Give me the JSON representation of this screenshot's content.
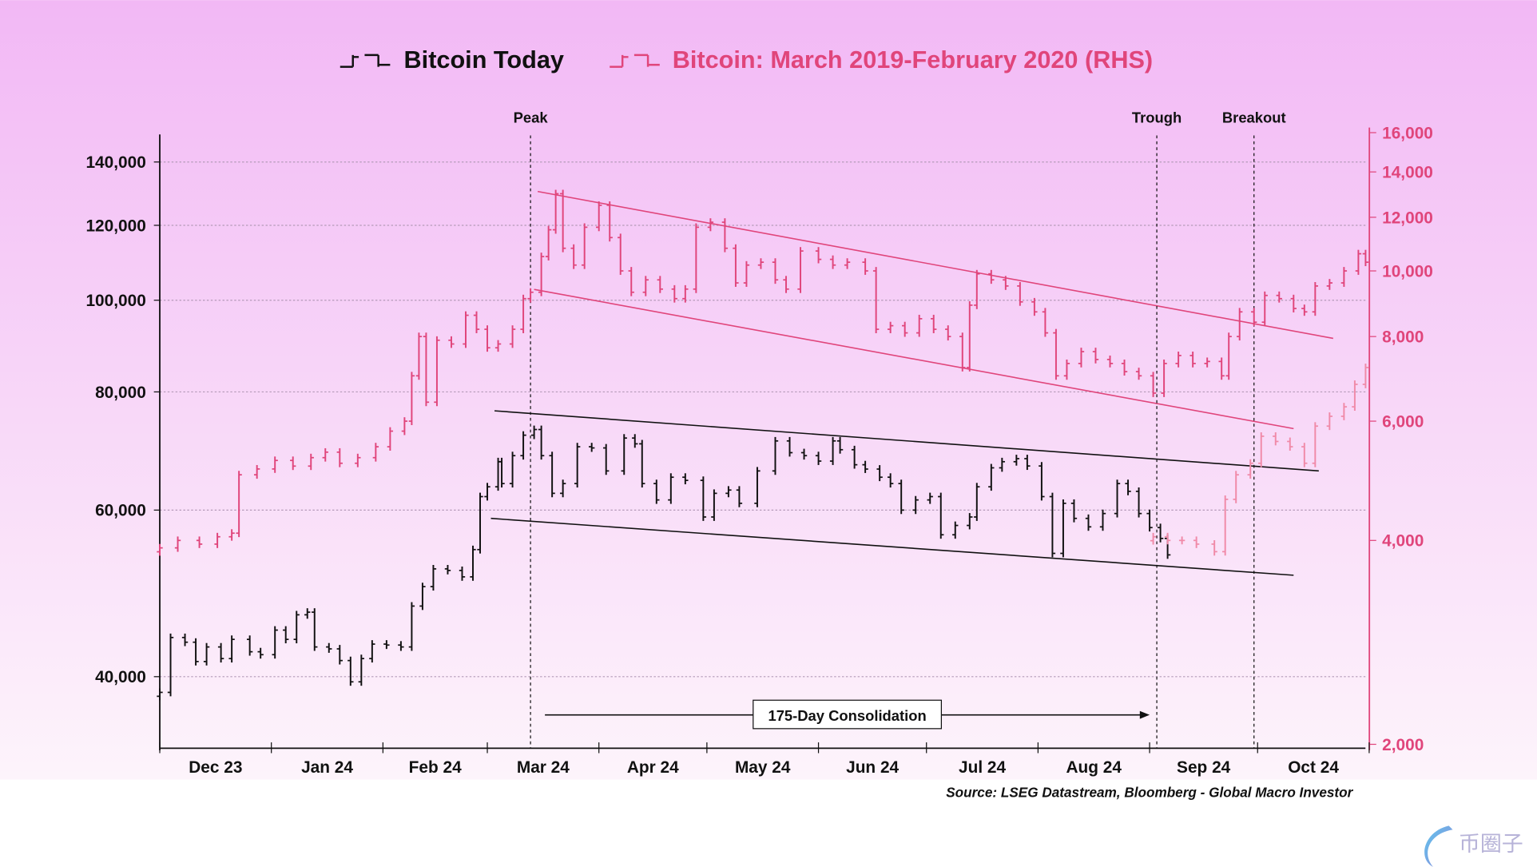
{
  "chart_data": {
    "type": "line",
    "title": "",
    "colors": {
      "today": "#111111",
      "rhs": "#e0457b",
      "rhs_light": "#f08aa8",
      "bg_top": "#f2b8f5",
      "bg_bottom": "#fdf4fb"
    },
    "legend": {
      "placement": "top",
      "entries": [
        "Bitcoin Today",
        "Bitcoin: March 2019-February 2020 (RHS)"
      ]
    },
    "x_ticks": [
      "Dec 23",
      "Jan 24",
      "Feb 24",
      "Mar 24",
      "Apr 24",
      "May 24",
      "Jun 24",
      "Jul 24",
      "Aug 24",
      "Sep 24",
      "Oct 24"
    ],
    "y_left": {
      "scale": "log",
      "ticks": [
        "140,000",
        "120,000",
        "100,000",
        "80,000",
        "60,000",
        "40,000"
      ],
      "tick_values": [
        140000,
        120000,
        100000,
        80000,
        60000,
        40000
      ],
      "range": [
        36000,
        150000
      ]
    },
    "y_right": {
      "scale": "log",
      "ticks": [
        "16,000",
        "14,000",
        "12,000",
        "10,000",
        "8,000",
        "6,000",
        "4,000",
        "2,000"
      ],
      "tick_values": [
        16000,
        14000,
        12000,
        10000,
        8000,
        6000,
        4000,
        2000
      ],
      "range": [
        2000,
        16000
      ]
    },
    "grid": true,
    "series": [
      {
        "name": "Bitcoin Today",
        "axis": "left",
        "points": [
          [
            "2023-12-01",
            38500
          ],
          [
            "2023-12-04",
            44000
          ],
          [
            "2023-12-08",
            43500
          ],
          [
            "2023-12-11",
            41500
          ],
          [
            "2023-12-14",
            43000
          ],
          [
            "2023-12-18",
            41800
          ],
          [
            "2023-12-21",
            43800
          ],
          [
            "2023-12-26",
            42500
          ],
          [
            "2023-12-29",
            42200
          ],
          [
            "2024-01-02",
            44800
          ],
          [
            "2024-01-05",
            43800
          ],
          [
            "2024-01-08",
            46500
          ],
          [
            "2024-01-11",
            46800
          ],
          [
            "2024-01-13",
            43000
          ],
          [
            "2024-01-17",
            42800
          ],
          [
            "2024-01-20",
            41600
          ],
          [
            "2024-01-23",
            39500
          ],
          [
            "2024-01-26",
            41800
          ],
          [
            "2024-01-29",
            43300
          ],
          [
            "2024-02-02",
            43200
          ],
          [
            "2024-02-06",
            43000
          ],
          [
            "2024-02-09",
            47500
          ],
          [
            "2024-02-12",
            49800
          ],
          [
            "2024-02-15",
            52000
          ],
          [
            "2024-02-19",
            51800
          ],
          [
            "2024-02-23",
            51000
          ],
          [
            "2024-02-26",
            54500
          ],
          [
            "2024-02-28",
            62000
          ],
          [
            "2024-03-01",
            63500
          ],
          [
            "2024-03-04",
            67500
          ],
          [
            "2024-03-05",
            64000
          ],
          [
            "2024-03-08",
            68500
          ],
          [
            "2024-03-11",
            72000
          ],
          [
            "2024-03-14",
            73000
          ],
          [
            "2024-03-16",
            68500
          ],
          [
            "2024-03-19",
            62500
          ],
          [
            "2024-03-22",
            64000
          ],
          [
            "2024-03-26",
            70000
          ],
          [
            "2024-03-30",
            69800
          ],
          [
            "2024-04-03",
            66000
          ],
          [
            "2024-04-08",
            71500
          ],
          [
            "2024-04-11",
            70500
          ],
          [
            "2024-04-13",
            64000
          ],
          [
            "2024-04-17",
            61500
          ],
          [
            "2024-04-21",
            65000
          ],
          [
            "2024-04-25",
            64500
          ],
          [
            "2024-04-30",
            59000
          ],
          [
            "2024-05-03",
            62500
          ],
          [
            "2024-05-07",
            63000
          ],
          [
            "2024-05-10",
            61000
          ],
          [
            "2024-05-15",
            66000
          ],
          [
            "2024-05-20",
            71000
          ],
          [
            "2024-05-24",
            69000
          ],
          [
            "2024-05-28",
            68500
          ],
          [
            "2024-06-01",
            67600
          ],
          [
            "2024-06-05",
            71000
          ],
          [
            "2024-06-07",
            69500
          ],
          [
            "2024-06-11",
            67000
          ],
          [
            "2024-06-14",
            66300
          ],
          [
            "2024-06-18",
            65000
          ],
          [
            "2024-06-21",
            64000
          ],
          [
            "2024-06-24",
            60000
          ],
          [
            "2024-06-28",
            61500
          ],
          [
            "2024-07-02",
            62000
          ],
          [
            "2024-07-05",
            56500
          ],
          [
            "2024-07-09",
            57800
          ],
          [
            "2024-07-13",
            59000
          ],
          [
            "2024-07-15",
            63500
          ],
          [
            "2024-07-19",
            66500
          ],
          [
            "2024-07-22",
            67500
          ],
          [
            "2024-07-26",
            68000
          ],
          [
            "2024-07-29",
            66800
          ],
          [
            "2024-08-02",
            62000
          ],
          [
            "2024-08-05",
            54000
          ],
          [
            "2024-08-08",
            61000
          ],
          [
            "2024-08-11",
            58800
          ],
          [
            "2024-08-15",
            57600
          ],
          [
            "2024-08-19",
            59500
          ],
          [
            "2024-08-23",
            64000
          ],
          [
            "2024-08-26",
            62800
          ],
          [
            "2024-08-29",
            59500
          ],
          [
            "2024-09-01",
            57500
          ],
          [
            "2024-09-04",
            56000
          ],
          [
            "2024-09-06",
            53800
          ]
        ]
      },
      {
        "name": "Bitcoin: March 2019-February 2020 (RHS)",
        "axis": "right",
        "points": [
          [
            "2023-12-01",
            3900
          ],
          [
            "2023-12-06",
            4000
          ],
          [
            "2023-12-12",
            3950
          ],
          [
            "2023-12-17",
            4050
          ],
          [
            "2023-12-21",
            4100
          ],
          [
            "2023-12-23",
            5000
          ],
          [
            "2023-12-28",
            5100
          ],
          [
            "2024-01-02",
            5250
          ],
          [
            "2024-01-07",
            5150
          ],
          [
            "2024-01-12",
            5300
          ],
          [
            "2024-01-16",
            5400
          ],
          [
            "2024-01-20",
            5200
          ],
          [
            "2024-01-25",
            5300
          ],
          [
            "2024-01-30",
            5500
          ],
          [
            "2024-02-03",
            5800
          ],
          [
            "2024-02-07",
            6000
          ],
          [
            "2024-02-09",
            7000
          ],
          [
            "2024-02-11",
            8000
          ],
          [
            "2024-02-13",
            6400
          ],
          [
            "2024-02-16",
            7900
          ],
          [
            "2024-02-20",
            7800
          ],
          [
            "2024-02-24",
            8600
          ],
          [
            "2024-02-27",
            8200
          ],
          [
            "2024-03-01",
            7700
          ],
          [
            "2024-03-04",
            7800
          ],
          [
            "2024-03-08",
            8200
          ],
          [
            "2024-03-11",
            9100
          ],
          [
            "2024-03-13",
            9300
          ],
          [
            "2024-03-16",
            10500
          ],
          [
            "2024-03-18",
            11500
          ],
          [
            "2024-03-20",
            13000
          ],
          [
            "2024-03-22",
            10800
          ],
          [
            "2024-03-25",
            10200
          ],
          [
            "2024-03-28",
            11600
          ],
          [
            "2024-04-01",
            12500
          ],
          [
            "2024-04-04",
            11200
          ],
          [
            "2024-04-07",
            10000
          ],
          [
            "2024-04-10",
            9300
          ],
          [
            "2024-04-14",
            9700
          ],
          [
            "2024-04-18",
            9400
          ],
          [
            "2024-04-22",
            9100
          ],
          [
            "2024-04-25",
            9400
          ],
          [
            "2024-04-28",
            11600
          ],
          [
            "2024-05-02",
            11800
          ],
          [
            "2024-05-06",
            10800
          ],
          [
            "2024-05-09",
            9600
          ],
          [
            "2024-05-12",
            10200
          ],
          [
            "2024-05-16",
            10300
          ],
          [
            "2024-05-20",
            9700
          ],
          [
            "2024-05-23",
            9400
          ],
          [
            "2024-05-27",
            10700
          ],
          [
            "2024-06-01",
            10400
          ],
          [
            "2024-06-05",
            10200
          ],
          [
            "2024-06-09",
            10300
          ],
          [
            "2024-06-14",
            10000
          ],
          [
            "2024-06-17",
            8200
          ],
          [
            "2024-06-21",
            8300
          ],
          [
            "2024-06-25",
            8100
          ],
          [
            "2024-06-29",
            8500
          ],
          [
            "2024-07-03",
            8200
          ],
          [
            "2024-07-07",
            8000
          ],
          [
            "2024-07-11",
            7200
          ],
          [
            "2024-07-13",
            8900
          ],
          [
            "2024-07-15",
            9900
          ],
          [
            "2024-07-19",
            9700
          ],
          [
            "2024-07-23",
            9500
          ],
          [
            "2024-07-27",
            9000
          ],
          [
            "2024-07-31",
            8700
          ],
          [
            "2024-08-03",
            8100
          ],
          [
            "2024-08-06",
            7000
          ],
          [
            "2024-08-09",
            7300
          ],
          [
            "2024-08-13",
            7600
          ],
          [
            "2024-08-17",
            7400
          ],
          [
            "2024-08-21",
            7300
          ],
          [
            "2024-08-25",
            7100
          ],
          [
            "2024-08-29",
            7000
          ],
          [
            "2024-09-02",
            6600
          ],
          [
            "2024-09-05",
            7300
          ],
          [
            "2024-09-09",
            7500
          ],
          [
            "2024-09-13",
            7300
          ],
          [
            "2024-09-17",
            7350
          ],
          [
            "2024-09-21",
            7000
          ],
          [
            "2024-09-23",
            8000
          ],
          [
            "2024-09-26",
            8700
          ],
          [
            "2024-09-30",
            8400
          ],
          [
            "2024-10-03",
            9200
          ],
          [
            "2024-10-07",
            9100
          ],
          [
            "2024-10-11",
            8800
          ],
          [
            "2024-10-14",
            8700
          ],
          [
            "2024-10-17",
            9500
          ],
          [
            "2024-10-21",
            9600
          ],
          [
            "2024-10-25",
            10000
          ],
          [
            "2024-10-29",
            10600
          ],
          [
            "2024-10-31",
            10300
          ]
        ]
      },
      {
        "axis": "right",
        "style": "light",
        "points": [
          [
            "2024-09-02",
            4050
          ],
          [
            "2024-09-06",
            4000
          ],
          [
            "2024-09-10",
            4000
          ],
          [
            "2024-09-14",
            3950
          ],
          [
            "2024-09-19",
            3850
          ],
          [
            "2024-09-22",
            4600
          ],
          [
            "2024-09-25",
            5000
          ],
          [
            "2024-09-29",
            5200
          ],
          [
            "2024-10-02",
            5700
          ],
          [
            "2024-10-06",
            5600
          ],
          [
            "2024-10-10",
            5500
          ],
          [
            "2024-10-14",
            5200
          ],
          [
            "2024-10-17",
            5900
          ],
          [
            "2024-10-21",
            6100
          ],
          [
            "2024-10-25",
            6300
          ],
          [
            "2024-10-28",
            6800
          ],
          [
            "2024-10-31",
            7200
          ]
        ]
      }
    ],
    "trendlines": [
      {
        "axis": "right",
        "from": [
          "2024-03-15",
          13100
        ],
        "to": [
          "2024-10-22",
          7950
        ]
      },
      {
        "axis": "right",
        "from": [
          "2024-03-14",
          9390
        ],
        "to": [
          "2024-10-11",
          5850
        ]
      },
      {
        "axis": "left",
        "from": [
          "2024-03-03",
          76400
        ],
        "to": [
          "2024-10-18",
          66000
        ]
      },
      {
        "axis": "left",
        "from": [
          "2024-03-02",
          58800
        ],
        "to": [
          "2024-10-11",
          51200
        ]
      }
    ],
    "vlines": [
      {
        "date": "2024-03-13",
        "label": "Peak"
      },
      {
        "date": "2024-09-03",
        "label": "Trough"
      },
      {
        "date": "2024-09-30",
        "label": "Breakout"
      }
    ],
    "annotation": {
      "label": "175-Day Consolidation",
      "from": "2024-03-17",
      "to": "2024-09-01"
    },
    "source": "Source: LSEG Datastream, Bloomberg - Global Macro Investor"
  },
  "watermark": "币圈子"
}
